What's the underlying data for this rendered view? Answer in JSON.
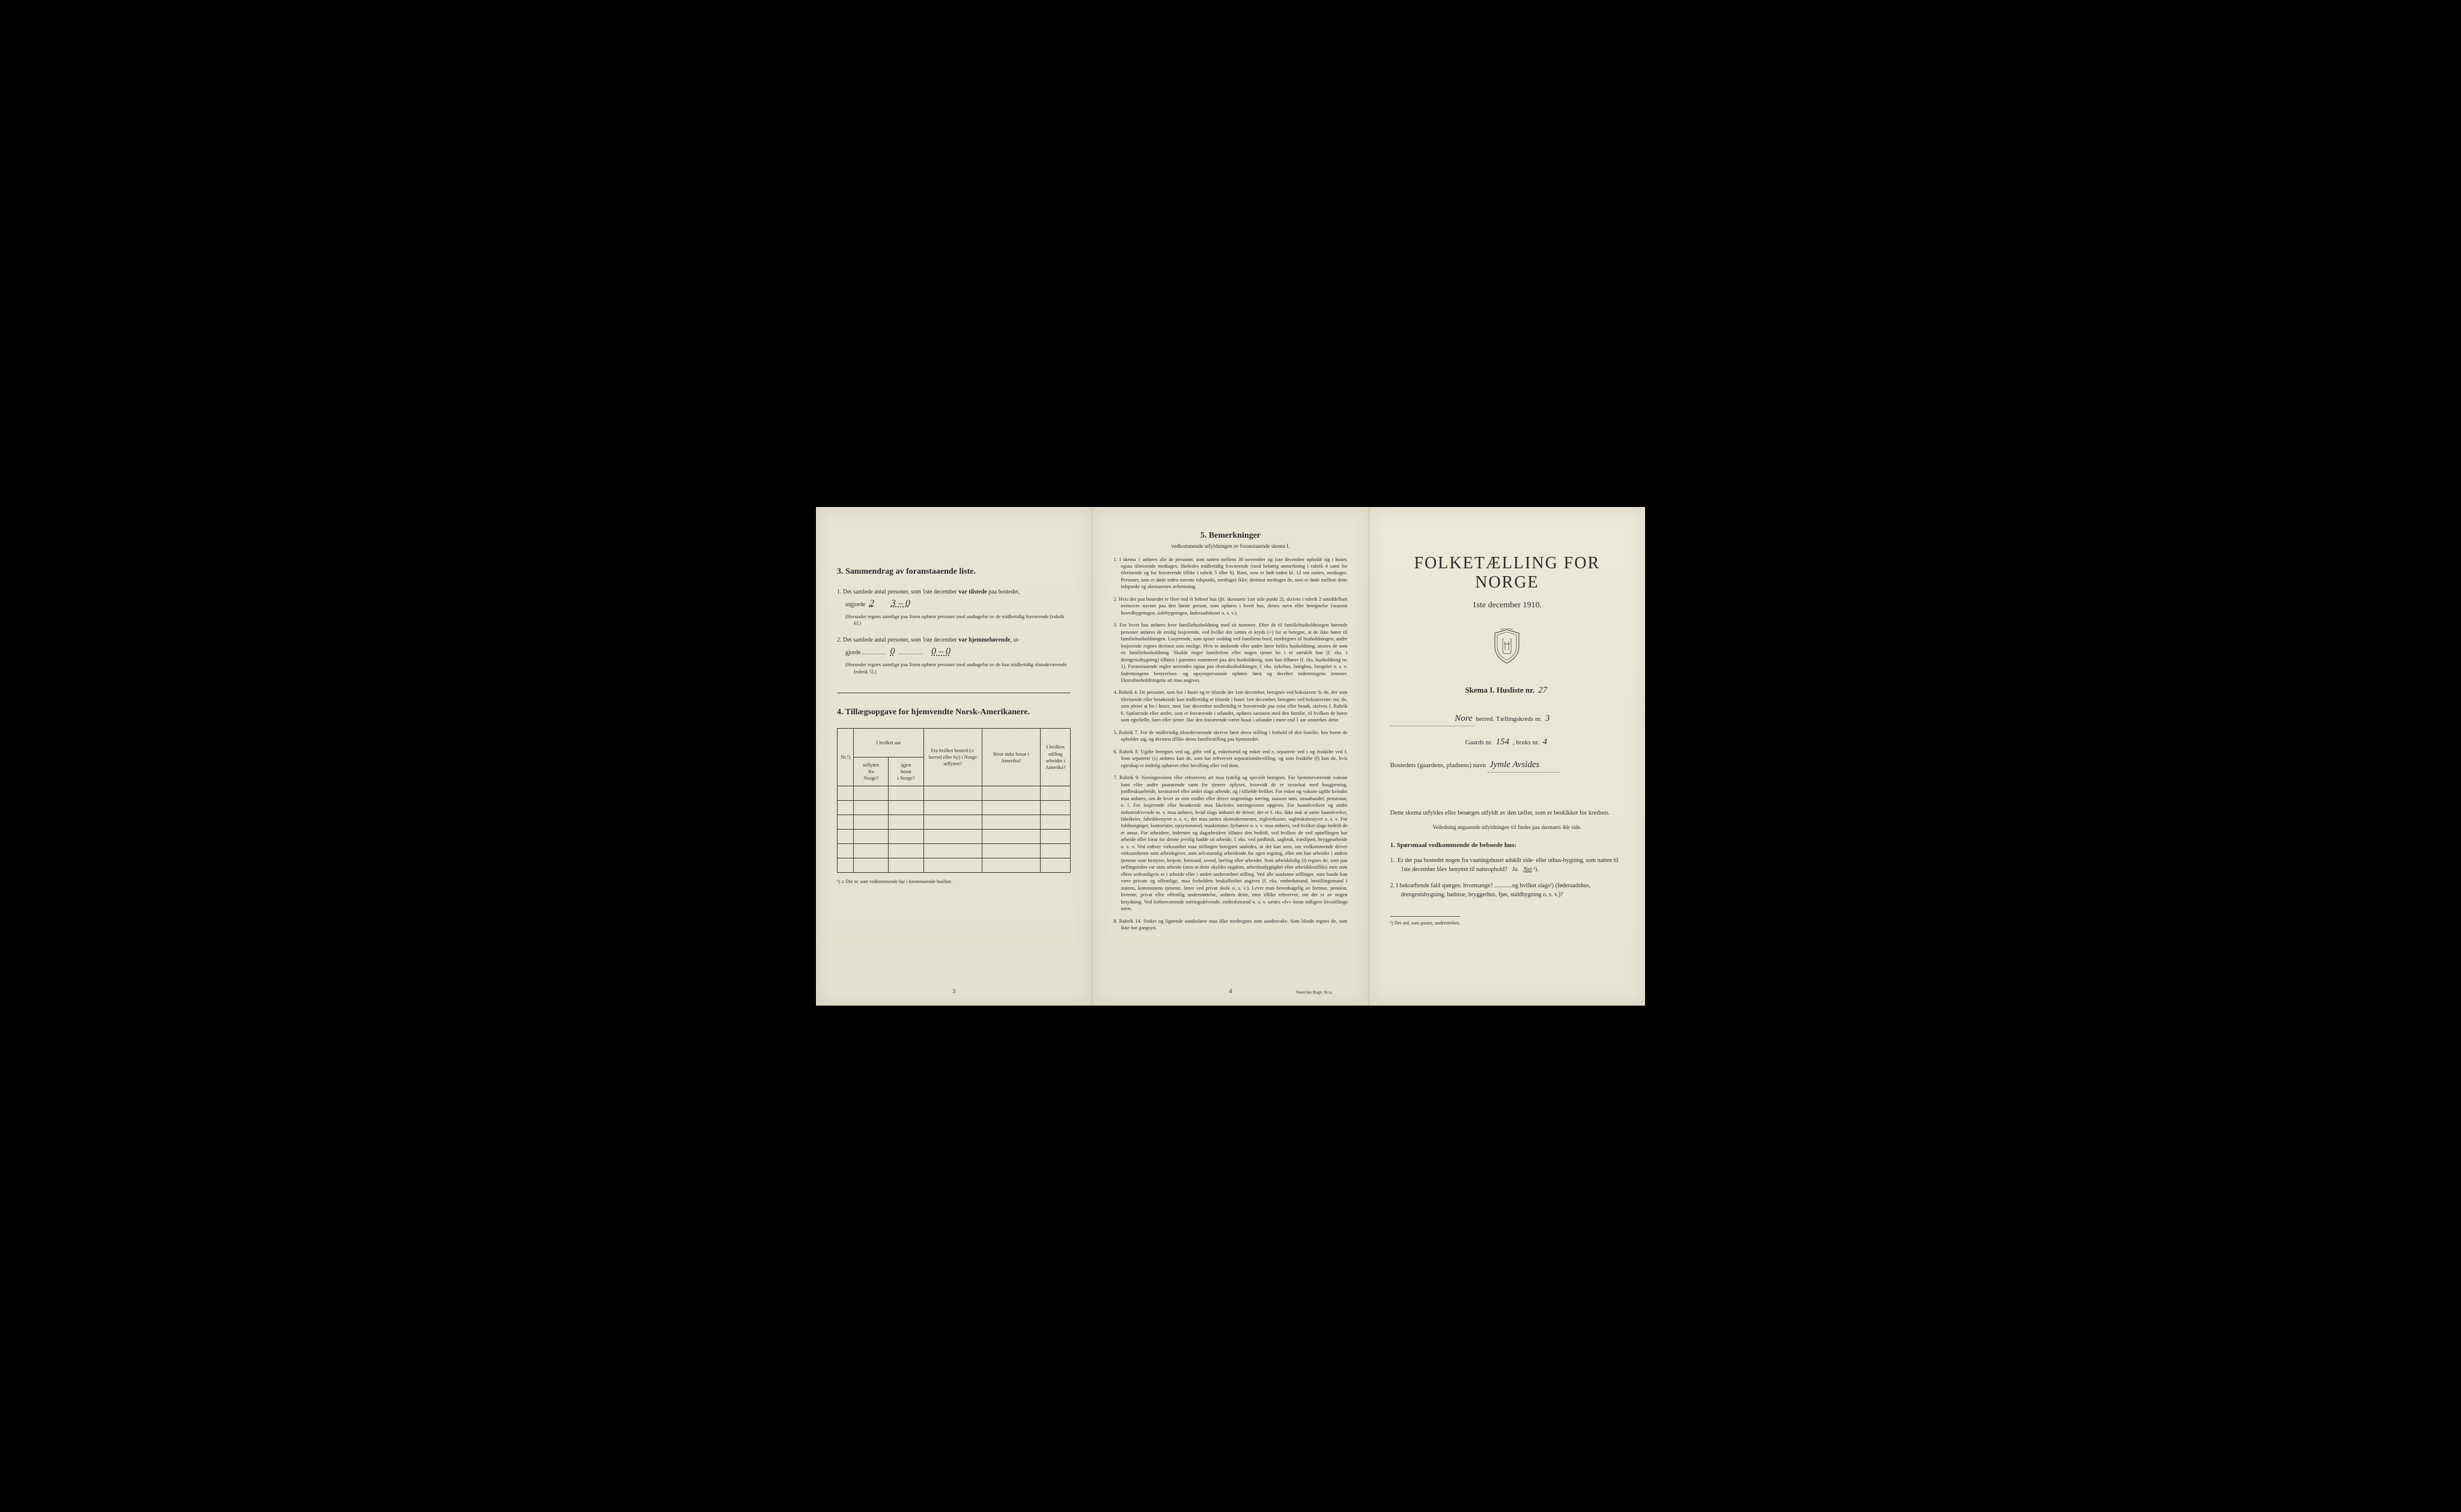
{
  "page1": {
    "section3": {
      "title": "3.   Sammendrag av foranstaaende liste.",
      "item1_prefix": "1.  Det samlede antal personer, som 1ste december ",
      "item1_bold": "var tilstede",
      "item1_suffix": " paa bostedet,",
      "item1_line2": "utgjorde",
      "item1_hw1": "2",
      "item1_hw2": "3 – 0",
      "item1_note": "(Herunder regnes samtlige paa listen opførte personer med undtagelse av de midlertidig fraværende [rubrik 6].)",
      "item2_prefix": "2.  Det samlede antal personer, som 1ste december ",
      "item2_bold": "var hjemmehørende",
      "item2_suffix": ", ut-",
      "item2_line2": "gjorde",
      "item2_hw1": "0",
      "item2_hw2": "0 – 0",
      "item2_note": "(Herunder regnes samtlige paa listen opførte personer med undtagelse av de kun midlertidig tilstedeværende [rubrik 5].)"
    },
    "section4": {
      "title": "4.   Tillægsopgave for hjemvendte Norsk-Amerikanere.",
      "headers": [
        "Nr.¹)",
        "I hvilket aar\nutflyttet\nfra\nNorge?",
        "igjen\nbosat\ni Norge?",
        "Fra hvilket bosted\n(ɔ: herred eller by)\ni Norge utflyttet?",
        "Hvor sidst\nbosat\ni Amerika?",
        "I hvilken stilling\narbeidet\ni Amerika?"
      ],
      "rows": 6,
      "footnote": "¹) ɔ: Det nr. som vedkommende har i foranstaaende husliste."
    },
    "pagenum": "3"
  },
  "page2": {
    "title": "5.   Bemerkninger",
    "subtitle": "vedkommende utfyldningen av foranstaaende skema I.",
    "items": [
      "1.  I skema 1 anføres alle de personer, som natten mellem 30 november og 1ste december opholdt sig i huset; ogsaa tilreisende medtages; likeledes midlertidig fraværende (med behørig anmerkning i rubrik 4 samt for tilreisende og for fraværende tillike i rubrik 5 eller 6). Barn, som er født inden kl. 12 om natten, medtages. Personer, som er døde inden nævnte tidspunkt, medtages ikke; derimot medtages de, som er døde mellem dette tidspunkt og skemaernes avhentning.",
      "2.  Hvis der paa bostedet er flere end ét beboet hus (jfr. skemaets 1ste side punkt 2), skrives i rubrik 2 umiddelbart ovenover navnet paa den første person, som opføres i hvert hus, dettes navn eller betegnelse (saasom hovedbygningen, sidebygningen, føderaadshuset o. s. v.).",
      "3.  For hvert hus anføres hver familiehusholdning med sit nummer. Efter de til familiehusholdningen hørende personer anføres de enslig losjerende, ved hvilke der sættes et kryds (×) for at betegne, at de ikke hører til familiehusholdningen. Losjerende, som spiser middag ved familiens bord, medregnes til husholdningen; andre losjerende regnes derimot som enslige. Hvis to søskende eller andre fører fælles husholdning, ansees de som en familiehusholdning. Skulde noget familielem eller nogen tjener bo i et særskilt hus (f. eks. i drengestubygning) tilføies i parentes nummeret paa den husholdning, som han tilhører (f. eks. husholdning nr. 1).\n     Foranstaaende regler anvendes ogsaa paa ekstrahusholdninger, f. eks. sykehus, fattighus, fængsler o. s. v. Indretningens bestyrelses- og opsynspersonale opføres først og derefter indretningens lemmer. Ekstrahusholdningens art maa angives.",
      "4.  Rubrik 4. De personer, som bor i huset og er tilstede der 1ste december, betegnes ved bokstaven: b; de, der som tilreisende eller besøkende kun midlertidig er tilstede i huset 1ste december, betegnes ved bokstaverne: mt; de, som pleier at bo i huset, men 1ste december midlertidig er fraværende paa reise eller besøk, skrives f.\n     Rubrik 6. Sjøfarende eller andre, som er fraværende i utlandet, opføres sammen med den familie, til hvilken de hører som egtefælle, barn eller tjener.\n     Har den fraværende været bosat i utlandet i mere end 1 aar anmerkes dette.",
      "5.  Rubrik 7. For de midlertidig tilstedeværende skrives først deres stilling i forhold til den familie, hos hvem de opholder sig, og dernæst tillike deres familiestilling paa hjemstedet.",
      "6.  Rubrik 8. Ugifte betegnes ved ug, gifte ved g, enkemænd og enker ved e, separerte ved s og fraskilte ved f. Som separerte (s) anføres kun de, som har erhvervet separationsbevilling, og som fraskilte (f) kun de, hvis egteskap er endelig ophævet efter bevilling eller ved dom.",
      "7.  Rubrik 9. Næringsveiens eller erhvervets art maa tydelig og specielt betegnes.\n     For hjemmeværende voksne barn eller andre paarørende samt for tjenere oplyses, hvorvidt de er sysselsat med husgjerning, jordbruksarbeide, kreaturstel eller andet slags arbeide, og i tilfælde hvilket. For enker og voksne ugifte kvinder maa anføres, om de lever av sine midler eller driver nogenslags næring, saasom søm, smaahandel, pensionat, o. l.\n     For losjerende eller besøkende maa likeledes næringsveien opgives.\n     For haandverkere og andre industridrivende m. v. maa anføres, hvad slags industri de driver; det er f. eks. ikke nok at sætte haandverker, fabrikeier, fabrikbestyrer o. s. v.; der maa sættes skomakermester, teglverkseier, sagbruksbestyrer o. s. v.\n     For fuldmægtiger, kontorister, opsynsmænd, maskinister, fyrbøtere o. s. v. maa anføres, ved hvilket slags bedrift de er ansat.\n     For arbeidere, inderster og dagarbeidere tilføies den bedrift, ved hvilken de ved optællingen har arbeide eller forut for denne jevnlig hadde sit arbeide, f. eks. ved jordbruk, sagbruk, træsliperi, bryggearbeide o. s. v.\n     Ved enhver virksomhet maa stillingen betegnes saaledes, at det kan sees, om vedkommende driver virksomheten som arbeidsgiver, som selvstændig arbeidende for egen regning, eller om han arbeider i andres tjeneste som bestyrer, betjent, formand, svend, lærling eller arbeider.\n     Som arbeidsledig (l) regnes de, som paa tællingstiden var uten arbeide (uten at dette skyldes sygdom, arbeidsudygtighet eller arbeidskonflikt) men som ellers sedvanligvis er i arbeide eller i anden underordnet stilling.\n     Ved alle saadanne stillinger, som baade kan være private og offentlige, maa forholdets beskaffenhet angives (f. eks. embedsmand, bestillingsmand i statens, kommunens tjeneste, lærer ved privat skole o. s. v.).\n     Lever man hovedsagelig av formue, pension, livrente, privat eller offentlig understøttelse, anføres dette, men tillike erhvervet, om det er av nogen betydning.\n     Ved forhenværende næringsdrivende, embedsmænd o. s. v. sættes «fv» foran tidligere livsstillings navn.",
      "8.  Rubrik 14. Sinker og lignende aandssløve maa ikke medregnes som aandssvake.\n     Som blinde regnes de, som ikke har gangsyn."
    ],
    "pagenum": "4",
    "printer": "Steen'ske Bogtr. Kr.a."
  },
  "page3": {
    "main_title": "FOLKETÆLLING FOR NORGE",
    "sub_title": "1ste december 1910.",
    "skema_label": "Skema I.  Husliste nr.",
    "skema_value": "27",
    "herred_value": "Nore",
    "herred_label": "herred.  Tællingskreds nr.",
    "kreds_value": "3",
    "gaards_label": "Gaards nr.",
    "gaards_value": "154",
    "bruks_label": ", bruks nr.",
    "bruks_value": "4",
    "bosted_label": "Bostedets (gaardens, pladsens) navn",
    "bosted_value": "Jymle Avsides",
    "body1": "Dette skema utfyldes eller besørges utfyldt av den tæller, som er beskikket for kredsen.",
    "body2": "Veiledning angaaende utfyldningen vil findes paa skemaets 4de side.",
    "q_head": "1. Spørsmaal vedkommende de beboede hus:",
    "q1": "1.  Er der paa bostedet nogen fra vaaningshuset adskilt side- eller uthus-bygning, som natten til 1ste december blev benyttet til natteophold?   Ja.   Nei ¹).",
    "q2": "2.  I bekræftende fald spørges: hvormange? ............og hvilket slags²) (føderaadshus, drengestubygning, badstue, bryggerhus, fjøs, staldbygning o. s. v.)?",
    "footnote": "¹) Det ord, som passer, understrekes."
  },
  "colors": {
    "paper": "#e8e4d4",
    "text": "#2a2a2a",
    "border": "#333333",
    "background": "#000000"
  }
}
